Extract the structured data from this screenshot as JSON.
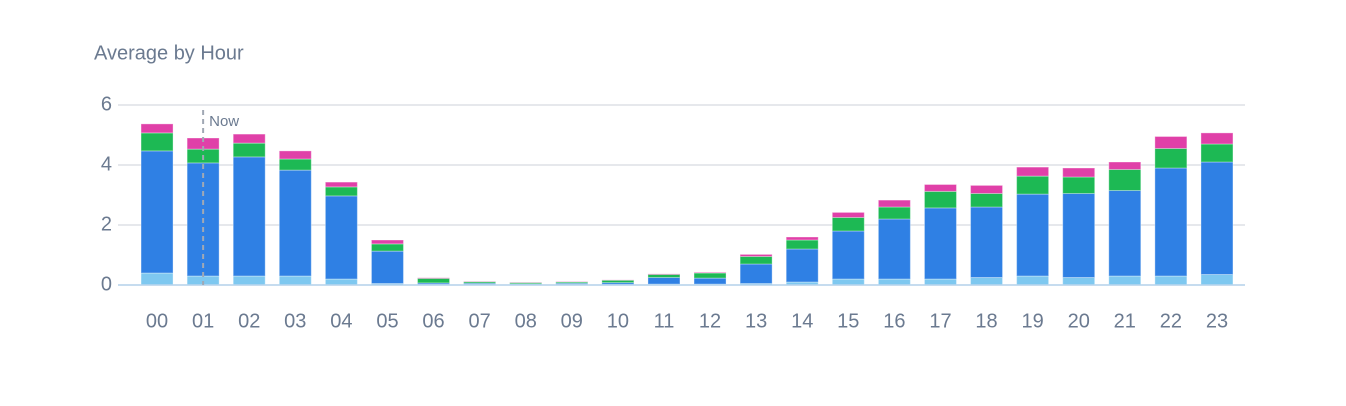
{
  "chart_data": {
    "type": "stacked-bar",
    "title": "Average by Hour",
    "categories": [
      "00",
      "01",
      "02",
      "03",
      "04",
      "05",
      "06",
      "07",
      "08",
      "09",
      "10",
      "11",
      "12",
      "13",
      "14",
      "15",
      "16",
      "17",
      "18",
      "19",
      "20",
      "21",
      "22",
      "23"
    ],
    "series": [
      {
        "color": "#7ec8f0",
        "values": [
          0.4,
          0.3,
          0.3,
          0.3,
          0.2,
          0.05,
          0.02,
          0.02,
          0.01,
          0.02,
          0.02,
          0.03,
          0.03,
          0.05,
          0.1,
          0.2,
          0.2,
          0.2,
          0.25,
          0.3,
          0.25,
          0.3,
          0.3,
          0.35
        ]
      },
      {
        "color": "#2f80e4",
        "values": [
          4.07,
          3.77,
          3.97,
          3.53,
          2.77,
          1.08,
          0.05,
          0.04,
          0.03,
          0.04,
          0.06,
          0.22,
          0.2,
          0.65,
          1.1,
          1.6,
          2.0,
          2.37,
          2.35,
          2.73,
          2.8,
          2.85,
          3.6,
          3.75
        ]
      },
      {
        "color": "#1db954",
        "values": [
          0.6,
          0.46,
          0.46,
          0.37,
          0.3,
          0.24,
          0.15,
          0.05,
          0.04,
          0.04,
          0.08,
          0.1,
          0.17,
          0.25,
          0.3,
          0.45,
          0.4,
          0.55,
          0.45,
          0.6,
          0.55,
          0.7,
          0.65,
          0.6
        ]
      },
      {
        "color": "#e040a8",
        "values": [
          0.3,
          0.37,
          0.3,
          0.27,
          0.16,
          0.13,
          0.02,
          0.01,
          0.01,
          0.01,
          0.01,
          0.02,
          0.02,
          0.07,
          0.1,
          0.17,
          0.23,
          0.23,
          0.27,
          0.3,
          0.3,
          0.25,
          0.4,
          0.37
        ]
      }
    ],
    "ylim": [
      0,
      6
    ],
    "yticks": [
      0,
      2,
      4,
      6
    ],
    "grid": true,
    "annotation": {
      "text": "Now",
      "category_index": 1
    }
  }
}
